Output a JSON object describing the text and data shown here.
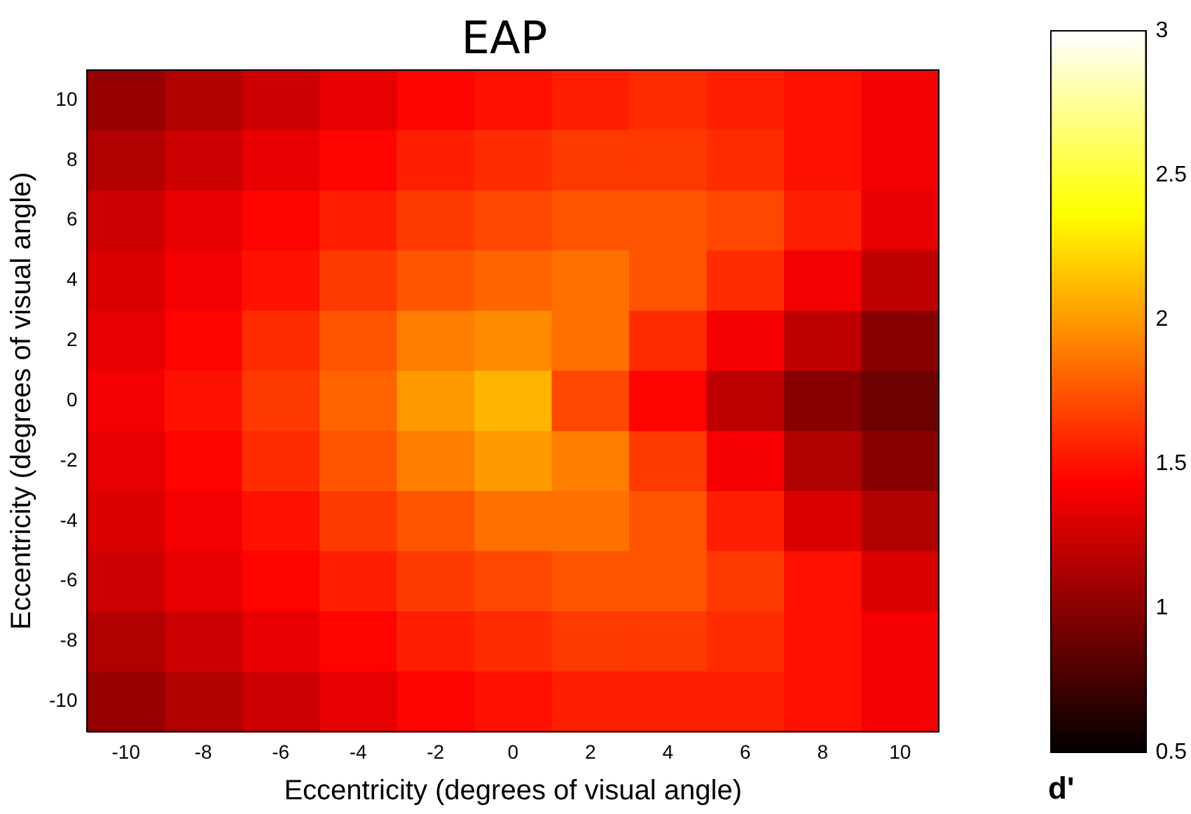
{
  "chart_data": {
    "type": "heatmap",
    "title": "EAP",
    "xlabel": "Eccentricity (degrees of visual angle)",
    "ylabel": "Eccentricity (degrees of visual angle)",
    "clabel": "d'",
    "categories": [
      "-10",
      "-8",
      "-6",
      "-4",
      "-2",
      "0",
      "2",
      "4",
      "6",
      "8",
      "10"
    ],
    "y_categories": [
      "10",
      "8",
      "6",
      "4",
      "2",
      "0",
      "-2",
      "-4",
      "-6",
      "-8",
      "-10"
    ],
    "clim": [
      0.5,
      3
    ],
    "cticks": [
      0.5,
      1,
      1.5,
      2,
      2.5,
      3
    ],
    "cells": [
      [
        1.05,
        1.15,
        1.25,
        1.35,
        1.45,
        1.5,
        1.55,
        1.6,
        1.55,
        1.5,
        1.4
      ],
      [
        1.15,
        1.25,
        1.35,
        1.45,
        1.55,
        1.6,
        1.65,
        1.65,
        1.6,
        1.5,
        1.4
      ],
      [
        1.25,
        1.35,
        1.45,
        1.55,
        1.65,
        1.7,
        1.75,
        1.75,
        1.7,
        1.55,
        1.35
      ],
      [
        1.3,
        1.4,
        1.5,
        1.65,
        1.75,
        1.8,
        1.85,
        1.75,
        1.6,
        1.4,
        1.2
      ],
      [
        1.35,
        1.45,
        1.6,
        1.75,
        1.9,
        1.95,
        1.85,
        1.6,
        1.4,
        1.2,
        1.0
      ],
      [
        1.4,
        1.5,
        1.65,
        1.8,
        2.0,
        2.1,
        1.7,
        1.45,
        1.2,
        1.0,
        0.9
      ],
      [
        1.35,
        1.45,
        1.6,
        1.75,
        1.9,
        2.0,
        1.9,
        1.65,
        1.4,
        1.15,
        1.0
      ],
      [
        1.3,
        1.4,
        1.5,
        1.65,
        1.75,
        1.85,
        1.85,
        1.75,
        1.55,
        1.3,
        1.15
      ],
      [
        1.25,
        1.35,
        1.45,
        1.55,
        1.65,
        1.7,
        1.75,
        1.75,
        1.65,
        1.5,
        1.3
      ],
      [
        1.15,
        1.25,
        1.35,
        1.45,
        1.55,
        1.6,
        1.65,
        1.65,
        1.6,
        1.5,
        1.4
      ],
      [
        1.05,
        1.15,
        1.25,
        1.35,
        1.45,
        1.5,
        1.55,
        1.55,
        1.55,
        1.5,
        1.4
      ]
    ]
  }
}
